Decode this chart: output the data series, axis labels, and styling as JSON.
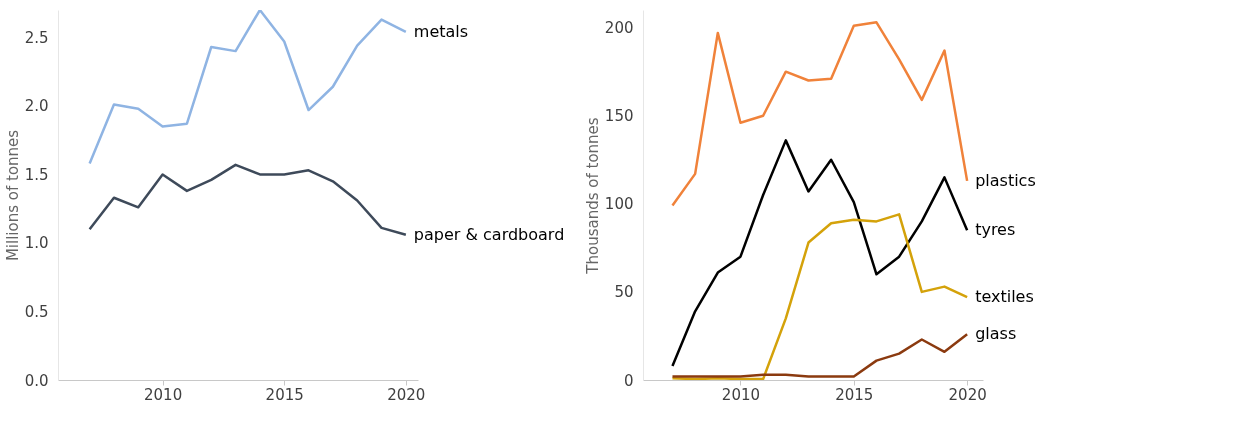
{
  "chart_data": [
    {
      "type": "line",
      "ylabel": "Millions of tonnes",
      "x": [
        2007,
        2008,
        2009,
        2010,
        2011,
        2012,
        2013,
        2014,
        2015,
        2016,
        2017,
        2018,
        2019,
        2020
      ],
      "series": [
        {
          "name": "metals",
          "color": "#8fb4e3",
          "values": [
            1.58,
            2.01,
            1.98,
            1.85,
            1.87,
            2.43,
            2.4,
            2.7,
            2.47,
            1.97,
            2.14,
            2.44,
            2.63,
            2.54
          ]
        },
        {
          "name": "paper & cardboard",
          "color": "#3e4a5a",
          "values": [
            1.1,
            1.33,
            1.26,
            1.5,
            1.38,
            1.46,
            1.57,
            1.5,
            1.5,
            1.53,
            1.45,
            1.31,
            1.11,
            1.06
          ]
        }
      ],
      "xlim": [
        2005.7,
        2020.5
      ],
      "xticks": [
        2010,
        2015,
        2020
      ],
      "ylim": [
        0,
        2.7
      ],
      "yticks": [
        {
          "value": 0,
          "label": "0.0"
        },
        0.5,
        {
          "value": 1,
          "label": "1.0"
        },
        1.5,
        {
          "value": 2,
          "label": "2.0"
        },
        2.5
      ],
      "grid": false,
      "marker": "none",
      "line_style": "solid"
    },
    {
      "type": "line",
      "ylabel": "Thousands of tonnes",
      "x": [
        2007,
        2008,
        2009,
        2010,
        2011,
        2012,
        2013,
        2014,
        2015,
        2016,
        2017,
        2018,
        2019,
        2020
      ],
      "series": [
        {
          "name": "plastics",
          "color": "#f0823a",
          "values": [
            99,
            117,
            197,
            146,
            150,
            175,
            170,
            171,
            201,
            203,
            182,
            159,
            187,
            113
          ]
        },
        {
          "name": "tyres",
          "color": "#000000",
          "values": [
            8,
            39,
            61,
            70,
            105,
            136,
            107,
            125,
            101,
            60,
            70,
            90,
            115,
            85
          ]
        },
        {
          "name": "textiles",
          "color": "#d4a20a",
          "values": [
            1,
            0.5,
            1,
            0.5,
            0.5,
            35,
            78,
            89,
            91,
            90,
            94,
            50,
            53,
            47
          ]
        },
        {
          "name": "glass",
          "color": "#8b3a0f",
          "values": [
            2,
            2,
            2,
            2,
            3,
            3,
            2,
            2,
            2,
            11,
            15,
            23,
            16,
            26
          ]
        }
      ],
      "xlim": [
        2005.7,
        2020.7
      ],
      "xticks": [
        2010,
        2015,
        2020
      ],
      "ylim": [
        0,
        210
      ],
      "yticks": [
        0,
        50,
        100,
        150,
        200
      ],
      "grid": false,
      "marker": "none",
      "line_style": "solid"
    }
  ]
}
